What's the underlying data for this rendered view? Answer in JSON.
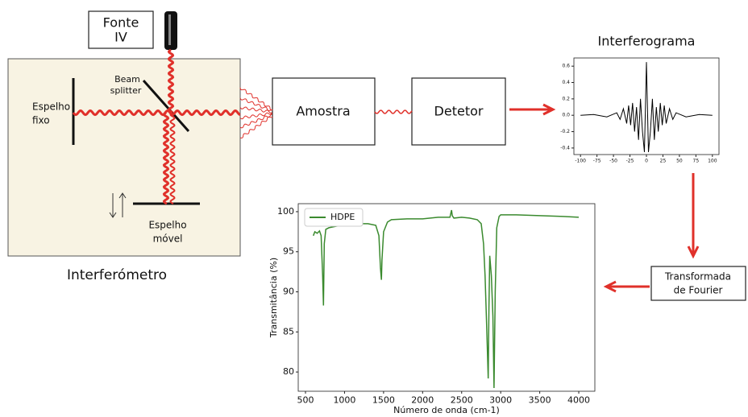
{
  "diagram": {
    "source": [
      "Fonte",
      "IV"
    ],
    "beam_splitter": [
      "Beam",
      "splitter"
    ],
    "fixed_mirror": [
      "Espelho",
      "fixo"
    ],
    "moving_mirror": [
      "Espelho",
      "móvel"
    ],
    "interferometer": "Interferómetro",
    "sample": "Amostra",
    "detector": "Detetor",
    "fourier": [
      "Transformada",
      "de Fourier"
    ]
  },
  "chart_data": [
    {
      "type": "line",
      "title": "Interferograma",
      "x": [
        -100,
        -80,
        -60,
        -45,
        -40,
        -35,
        -30,
        -27,
        -24,
        -21,
        -18,
        -15,
        -12,
        -9,
        -6,
        -3,
        0,
        3,
        6,
        9,
        12,
        15,
        18,
        21,
        24,
        27,
        30,
        35,
        40,
        45,
        60,
        80,
        100
      ],
      "series": [
        {
          "color": "#000000",
          "values": [
            0,
            0.01,
            -0.02,
            0.03,
            -0.05,
            0.08,
            -0.1,
            0.12,
            -0.12,
            0.15,
            -0.2,
            0.1,
            -0.3,
            0.2,
            -0.2,
            -0.45,
            0.65,
            -0.45,
            -0.2,
            0.2,
            -0.3,
            0.1,
            -0.2,
            0.15,
            -0.12,
            0.12,
            -0.1,
            0.08,
            -0.05,
            0.03,
            -0.02,
            0.01,
            0
          ]
        }
      ],
      "xlim": [
        -110,
        110
      ],
      "xticks": [
        -100,
        -75,
        -50,
        -25,
        0,
        25,
        50,
        75,
        100
      ],
      "ylim": [
        -0.48,
        0.7
      ],
      "yticks": [
        -0.4,
        -0.2,
        {
          "value": 0,
          "label": "0.0"
        },
        0.2,
        0.4,
        0.6
      ]
    },
    {
      "type": "line",
      "xlabel": "Número de onda (cm-1)",
      "ylabel": "Transmitância (%)",
      "x": [
        600,
        620,
        650,
        680,
        700,
        720,
        730,
        740,
        760,
        800,
        900,
        1000,
        1100,
        1200,
        1300,
        1400,
        1440,
        1460,
        1472,
        1480,
        1500,
        1550,
        1600,
        1800,
        2000,
        2200,
        2350,
        2370,
        2380,
        2400,
        2500,
        2600,
        2700,
        2750,
        2780,
        2800,
        2820,
        2840,
        2850,
        2860,
        2880,
        2900,
        2915,
        2930,
        2950,
        2980,
        3000,
        3200,
        3500,
        3800,
        4000
      ],
      "series": [
        {
          "name": "HDPE",
          "color": "#3a8a2e",
          "values": [
            97,
            97.5,
            97.3,
            97.6,
            97,
            92,
            88.3,
            96,
            97.8,
            98,
            98.2,
            98.3,
            98.4,
            98.5,
            98.5,
            98.3,
            97,
            93,
            91.5,
            94,
            97.5,
            98.7,
            99,
            99.1,
            99.1,
            99.3,
            99.3,
            100.2,
            99.5,
            99.2,
            99.3,
            99.2,
            99,
            98.5,
            96,
            92,
            86,
            79.2,
            88,
            94.5,
            92,
            87,
            78,
            90,
            98,
            99.4,
            99.6,
            99.6,
            99.5,
            99.4,
            99.3
          ]
        }
      ],
      "xlim": [
        407,
        4206
      ],
      "xticks": [
        500,
        1000,
        1500,
        2000,
        2500,
        3000,
        3500,
        4000
      ],
      "ylim": [
        77.6,
        101
      ],
      "yticks": [
        80,
        85,
        90,
        95,
        100
      ],
      "legend": "upper left"
    }
  ]
}
